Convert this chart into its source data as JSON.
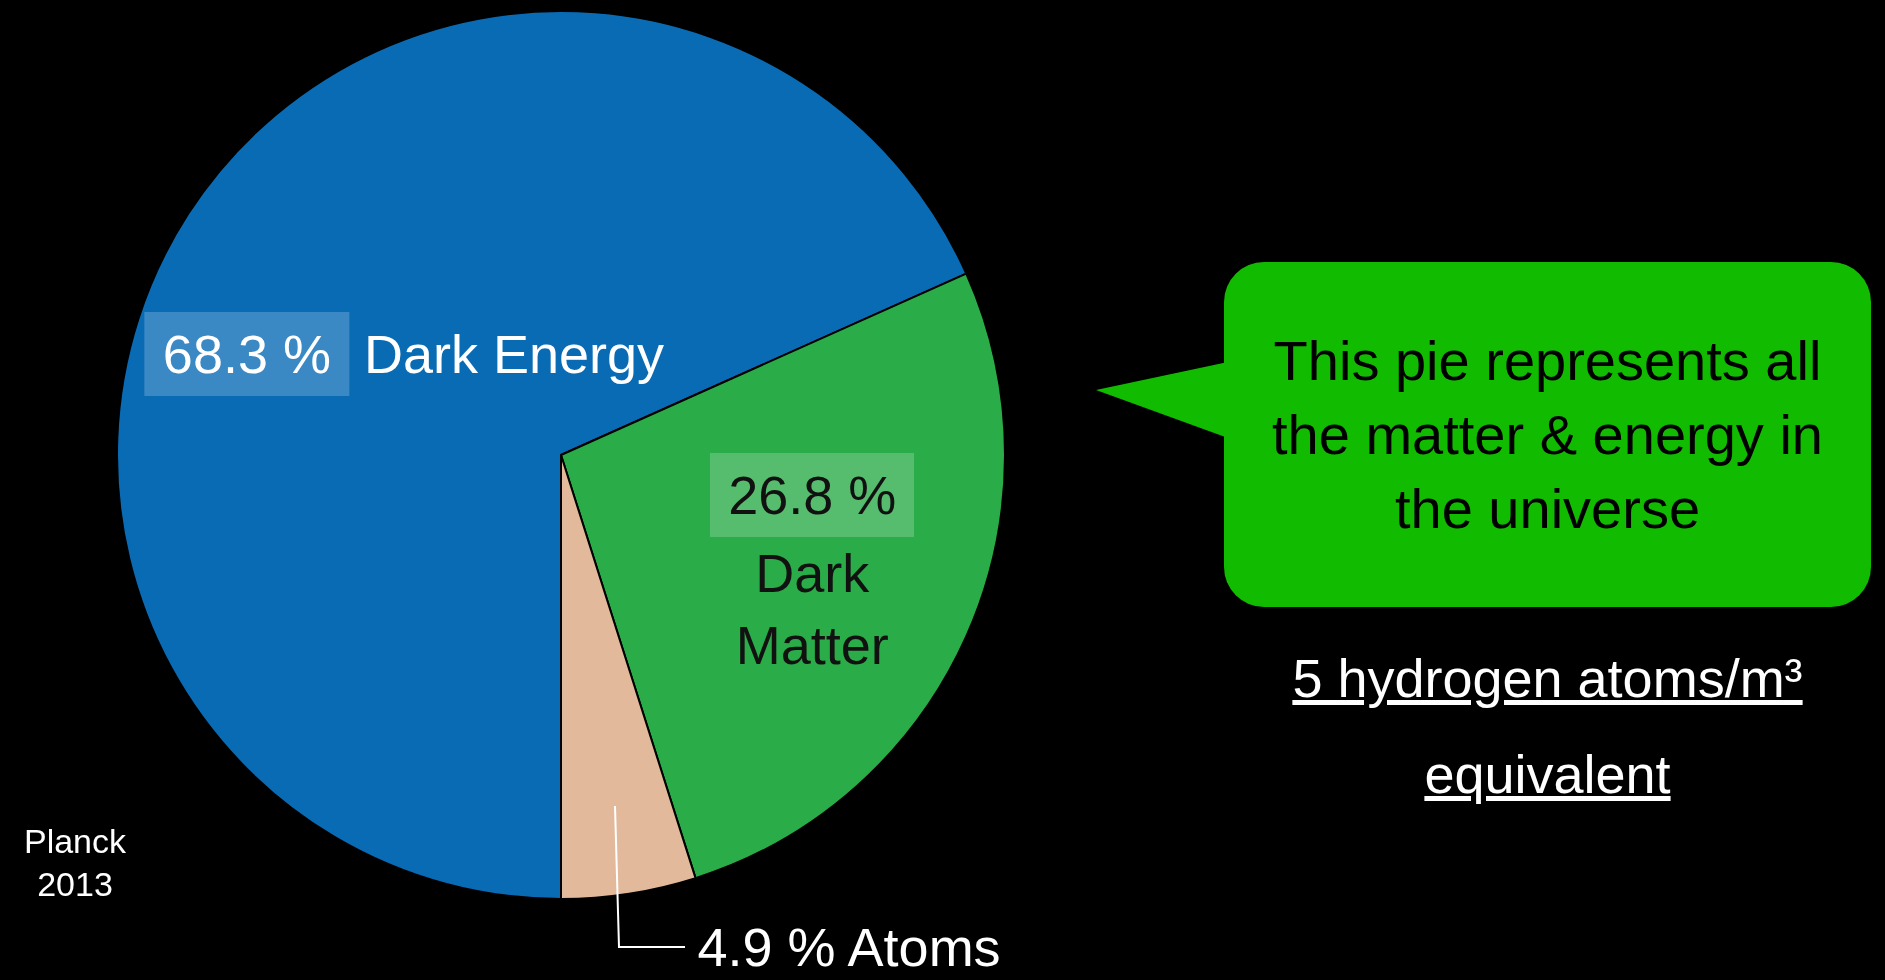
{
  "chart_data": {
    "type": "pie",
    "categories": [
      "Dark Energy",
      "Dark Matter",
      "Atoms"
    ],
    "values": [
      68.3,
      26.8,
      4.9
    ],
    "colors": [
      "#0a6bb5",
      "#2aad48",
      "#e2b99b"
    ],
    "value_labels": [
      "68.3 %",
      "26.8 %",
      "4.9 %"
    ],
    "legend": false,
    "annotations": [
      "This pie represents all the matter & energy in the universe",
      "5 hydrogen atoms/m³ equivalent",
      "Planck 2013"
    ]
  }
}
